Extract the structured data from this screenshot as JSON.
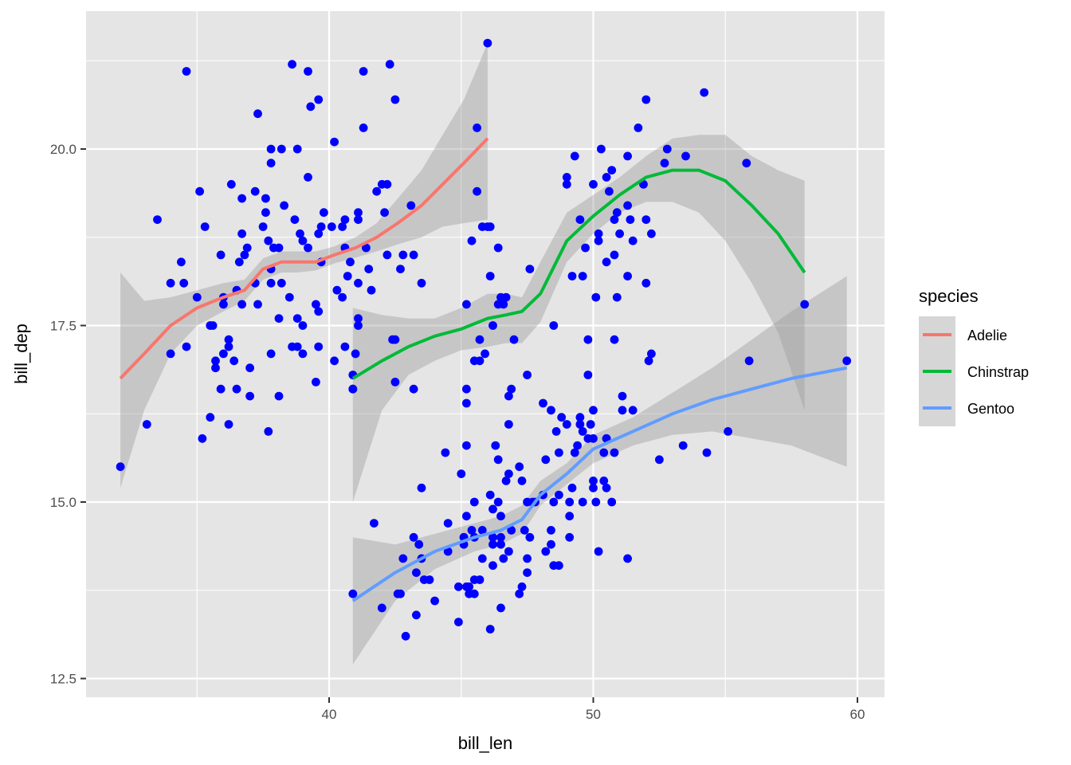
{
  "chart_data": {
    "type": "scatter",
    "title": "",
    "xlabel": "bill_len",
    "ylabel": "bill_dep",
    "xlim": [
      31.2,
      60.9
    ],
    "ylim": [
      12.0,
      22.0
    ],
    "x_ticks": [
      40,
      50,
      60
    ],
    "x_tick_labels": [
      "40",
      "50",
      "60"
    ],
    "y_ticks": [
      12.5,
      15.0,
      17.5,
      20.0
    ],
    "y_tick_labels": [
      "12.5",
      "15.0",
      "17.5",
      "20.0"
    ],
    "grid": true,
    "panel_background": "#e5e5e5",
    "point_color": "#0000ff",
    "ribbon_color": "#999999",
    "legend": {
      "title": "species",
      "placement": "right",
      "entries": [
        {
          "label": "Adelie",
          "color": "#f8766d"
        },
        {
          "label": "Chinstrap",
          "color": "#00ba38"
        },
        {
          "label": "Gentoo",
          "color": "#619cff"
        }
      ]
    },
    "points": [
      [
        32.1,
        15.5
      ],
      [
        33.1,
        16.1
      ],
      [
        33.5,
        19.0
      ],
      [
        34.0,
        17.1
      ],
      [
        34.0,
        18.1
      ],
      [
        34.4,
        18.4
      ],
      [
        34.5,
        18.1
      ],
      [
        34.6,
        21.1
      ],
      [
        34.6,
        17.2
      ],
      [
        35.0,
        17.9
      ],
      [
        35.1,
        19.4
      ],
      [
        35.2,
        15.9
      ],
      [
        35.3,
        18.9
      ],
      [
        35.5,
        16.2
      ],
      [
        35.5,
        17.5
      ],
      [
        35.6,
        17.5
      ],
      [
        35.7,
        17.0
      ],
      [
        35.7,
        16.9
      ],
      [
        35.9,
        16.6
      ],
      [
        35.9,
        18.5
      ],
      [
        36.0,
        17.9
      ],
      [
        36.0,
        17.1
      ],
      [
        36.0,
        17.8
      ],
      [
        36.2,
        16.1
      ],
      [
        36.2,
        17.2
      ],
      [
        36.2,
        17.3
      ],
      [
        36.3,
        19.5
      ],
      [
        36.4,
        17.0
      ],
      [
        36.5,
        16.6
      ],
      [
        36.5,
        18.0
      ],
      [
        36.6,
        18.4
      ],
      [
        36.7,
        17.8
      ],
      [
        36.7,
        19.3
      ],
      [
        36.7,
        18.8
      ],
      [
        36.8,
        18.5
      ],
      [
        36.9,
        18.6
      ],
      [
        37.0,
        16.5
      ],
      [
        37.0,
        16.9
      ],
      [
        37.2,
        19.4
      ],
      [
        37.2,
        18.1
      ],
      [
        37.3,
        17.8
      ],
      [
        37.3,
        20.5
      ],
      [
        37.5,
        18.9
      ],
      [
        37.6,
        19.3
      ],
      [
        37.6,
        19.1
      ],
      [
        37.7,
        18.7
      ],
      [
        37.7,
        16.0
      ],
      [
        37.8,
        20.0
      ],
      [
        37.8,
        18.3
      ],
      [
        37.8,
        17.1
      ],
      [
        37.8,
        19.8
      ],
      [
        37.8,
        18.1
      ],
      [
        37.9,
        18.6
      ],
      [
        38.1,
        18.6
      ],
      [
        38.1,
        16.5
      ],
      [
        38.1,
        17.6
      ],
      [
        38.2,
        18.1
      ],
      [
        38.2,
        20.0
      ],
      [
        38.3,
        19.2
      ],
      [
        38.5,
        17.9
      ],
      [
        38.6,
        21.2
      ],
      [
        38.6,
        17.2
      ],
      [
        38.7,
        19.0
      ],
      [
        38.8,
        17.2
      ],
      [
        38.8,
        20.0
      ],
      [
        38.8,
        17.6
      ],
      [
        38.9,
        18.8
      ],
      [
        39.0,
        17.5
      ],
      [
        39.0,
        18.7
      ],
      [
        39.0,
        17.1
      ],
      [
        39.2,
        18.6
      ],
      [
        39.2,
        21.1
      ],
      [
        39.2,
        19.6
      ],
      [
        39.3,
        20.6
      ],
      [
        39.5,
        17.8
      ],
      [
        39.5,
        16.7
      ],
      [
        39.6,
        18.8
      ],
      [
        39.6,
        17.7
      ],
      [
        39.6,
        20.7
      ],
      [
        39.6,
        17.2
      ],
      [
        39.7,
        18.4
      ],
      [
        39.7,
        18.9
      ],
      [
        39.8,
        19.1
      ],
      [
        40.1,
        18.9
      ],
      [
        40.2,
        17.0
      ],
      [
        40.2,
        20.1
      ],
      [
        40.3,
        18.0
      ],
      [
        40.5,
        17.9
      ],
      [
        40.5,
        18.9
      ],
      [
        40.6,
        18.6
      ],
      [
        40.6,
        17.2
      ],
      [
        40.6,
        19.0
      ],
      [
        40.7,
        18.2
      ],
      [
        40.8,
        18.4
      ],
      [
        40.9,
        16.6
      ],
      [
        40.9,
        16.8
      ],
      [
        41.0,
        17.1
      ],
      [
        41.1,
        19.0
      ],
      [
        41.1,
        18.1
      ],
      [
        41.1,
        19.1
      ],
      [
        41.1,
        17.5
      ],
      [
        41.1,
        17.6
      ],
      [
        41.3,
        21.1
      ],
      [
        41.3,
        20.3
      ],
      [
        41.4,
        18.6
      ],
      [
        41.5,
        18.3
      ],
      [
        41.6,
        18.0
      ],
      [
        41.8,
        19.4
      ],
      [
        42.0,
        19.5
      ],
      [
        42.1,
        19.1
      ],
      [
        42.2,
        18.5
      ],
      [
        42.2,
        19.5
      ],
      [
        42.3,
        21.2
      ],
      [
        42.5,
        20.7
      ],
      [
        42.7,
        18.3
      ],
      [
        42.8,
        18.5
      ],
      [
        43.1,
        19.2
      ],
      [
        43.2,
        18.5
      ],
      [
        45.6,
        20.3
      ],
      [
        45.8,
        18.9
      ],
      [
        46.0,
        21.5
      ],
      [
        46.1,
        18.9
      ],
      [
        46.5,
        17.9
      ],
      [
        50.0,
        19.5
      ],
      [
        51.3,
        19.2
      ],
      [
        45.4,
        18.7
      ],
      [
        52.7,
        19.8
      ],
      [
        45.2,
        17.8
      ],
      [
        46.1,
        18.2
      ],
      [
        51.3,
        18.2
      ],
      [
        46.0,
        18.9
      ],
      [
        51.3,
        19.9
      ],
      [
        46.6,
        17.8
      ],
      [
        51.7,
        20.3
      ],
      [
        47.0,
        17.3
      ],
      [
        52.0,
        18.1
      ],
      [
        45.9,
        17.1
      ],
      [
        50.5,
        19.6
      ],
      [
        50.3,
        20.0
      ],
      [
        58.0,
        17.8
      ],
      [
        46.4,
        18.6
      ],
      [
        49.2,
        18.2
      ],
      [
        42.4,
        17.3
      ],
      [
        48.5,
        17.5
      ],
      [
        43.2,
        16.6
      ],
      [
        50.6,
        19.4
      ],
      [
        46.7,
        17.9
      ],
      [
        52.0,
        19.0
      ],
      [
        50.5,
        18.4
      ],
      [
        49.5,
        19.0
      ],
      [
        46.4,
        17.8
      ],
      [
        52.8,
        20.0
      ],
      [
        40.9,
        16.6
      ],
      [
        54.2,
        20.8
      ],
      [
        42.5,
        16.7
      ],
      [
        51.0,
        18.8
      ],
      [
        49.7,
        18.6
      ],
      [
        47.5,
        16.8
      ],
      [
        47.6,
        18.3
      ],
      [
        52.0,
        20.7
      ],
      [
        46.9,
        16.6
      ],
      [
        53.5,
        19.9
      ],
      [
        49.0,
        19.5
      ],
      [
        46.2,
        17.5
      ],
      [
        50.9,
        19.1
      ],
      [
        45.5,
        17.0
      ],
      [
        50.9,
        17.9
      ],
      [
        50.8,
        18.5
      ],
      [
        50.1,
        17.9
      ],
      [
        49.0,
        19.6
      ],
      [
        51.5,
        18.7
      ],
      [
        49.8,
        17.3
      ],
      [
        48.1,
        16.4
      ],
      [
        51.4,
        19.0
      ],
      [
        45.7,
        17.3
      ],
      [
        50.7,
        19.7
      ],
      [
        42.5,
        17.3
      ],
      [
        52.2,
        18.8
      ],
      [
        45.2,
        16.6
      ],
      [
        49.3,
        19.9
      ],
      [
        50.2,
        18.8
      ],
      [
        45.6,
        19.4
      ],
      [
        51.9,
        19.5
      ],
      [
        46.8,
        16.5
      ],
      [
        45.7,
        17.0
      ],
      [
        55.8,
        19.8
      ],
      [
        43.5,
        18.1
      ],
      [
        49.6,
        18.2
      ],
      [
        50.8,
        19.0
      ],
      [
        50.2,
        18.7
      ],
      [
        46.1,
        13.2
      ],
      [
        50.0,
        16.3
      ],
      [
        48.7,
        14.1
      ],
      [
        50.0,
        15.2
      ],
      [
        47.6,
        14.5
      ],
      [
        46.5,
        13.5
      ],
      [
        45.4,
        14.6
      ],
      [
        46.7,
        15.3
      ],
      [
        43.3,
        13.4
      ],
      [
        46.8,
        15.4
      ],
      [
        40.9,
        13.7
      ],
      [
        49.0,
        16.1
      ],
      [
        45.5,
        13.7
      ],
      [
        48.4,
        14.6
      ],
      [
        45.8,
        14.6
      ],
      [
        49.3,
        15.7
      ],
      [
        42.0,
        13.5
      ],
      [
        49.2,
        15.2
      ],
      [
        46.2,
        14.5
      ],
      [
        48.7,
        15.1
      ],
      [
        50.2,
        14.3
      ],
      [
        45.1,
        14.5
      ],
      [
        46.5,
        14.5
      ],
      [
        46.3,
        15.8
      ],
      [
        42.9,
        13.1
      ],
      [
        46.1,
        15.1
      ],
      [
        44.5,
        14.3
      ],
      [
        47.8,
        15.0
      ],
      [
        48.2,
        14.3
      ],
      [
        50.0,
        15.3
      ],
      [
        47.3,
        15.3
      ],
      [
        42.8,
        14.2
      ],
      [
        45.1,
        14.5
      ],
      [
        59.6,
        17.0
      ],
      [
        49.1,
        14.8
      ],
      [
        48.4,
        16.3
      ],
      [
        42.6,
        13.7
      ],
      [
        44.4,
        15.7
      ],
      [
        44.0,
        13.6
      ],
      [
        48.7,
        15.7
      ],
      [
        42.7,
        13.7
      ],
      [
        49.6,
        16.0
      ],
      [
        45.3,
        13.7
      ],
      [
        49.6,
        15.0
      ],
      [
        50.5,
        15.9
      ],
      [
        43.6,
        13.9
      ],
      [
        45.5,
        13.9
      ],
      [
        50.5,
        15.9
      ],
      [
        44.9,
        13.3
      ],
      [
        45.2,
        15.8
      ],
      [
        46.6,
        14.2
      ],
      [
        48.5,
        14.1
      ],
      [
        45.1,
        14.4
      ],
      [
        50.1,
        15.0
      ],
      [
        46.5,
        14.4
      ],
      [
        45.0,
        15.4
      ],
      [
        43.8,
        13.9
      ],
      [
        45.5,
        15.0
      ],
      [
        43.2,
        14.5
      ],
      [
        50.4,
        15.3
      ],
      [
        45.3,
        13.8
      ],
      [
        46.2,
        14.9
      ],
      [
        45.7,
        13.9
      ],
      [
        54.3,
        15.7
      ],
      [
        45.8,
        14.2
      ],
      [
        49.8,
        16.8
      ],
      [
        46.2,
        14.4
      ],
      [
        49.5,
        16.2
      ],
      [
        43.5,
        14.2
      ],
      [
        50.7,
        15.0
      ],
      [
        47.7,
        15.0
      ],
      [
        46.4,
        15.6
      ],
      [
        48.2,
        15.6
      ],
      [
        46.5,
        14.8
      ],
      [
        46.4,
        15.0
      ],
      [
        48.6,
        16.0
      ],
      [
        47.5,
        14.2
      ],
      [
        51.1,
        16.3
      ],
      [
        45.2,
        13.8
      ],
      [
        45.2,
        16.4
      ],
      [
        49.1,
        14.5
      ],
      [
        52.5,
        15.6
      ],
      [
        47.4,
        14.6
      ],
      [
        50.0,
        15.9
      ],
      [
        44.9,
        13.8
      ],
      [
        50.8,
        17.3
      ],
      [
        43.4,
        14.4
      ],
      [
        51.3,
        14.2
      ],
      [
        47.5,
        14.0
      ],
      [
        52.1,
        17.0
      ],
      [
        47.5,
        15.0
      ],
      [
        52.2,
        17.1
      ],
      [
        45.5,
        14.5
      ],
      [
        49.5,
        16.1
      ],
      [
        44.5,
        14.7
      ],
      [
        50.8,
        15.7
      ],
      [
        49.4,
        15.8
      ],
      [
        46.9,
        14.6
      ],
      [
        48.4,
        14.4
      ],
      [
        51.1,
        16.5
      ],
      [
        48.5,
        15.0
      ],
      [
        55.9,
        17.0
      ],
      [
        47.2,
        15.5
      ],
      [
        49.1,
        15.0
      ],
      [
        47.3,
        13.8
      ],
      [
        46.8,
        16.1
      ],
      [
        41.7,
        14.7
      ],
      [
        53.4,
        15.8
      ],
      [
        43.3,
        14.0
      ],
      [
        48.1,
        15.1
      ],
      [
        50.5,
        15.2
      ],
      [
        49.8,
        15.9
      ],
      [
        43.5,
        15.2
      ],
      [
        51.5,
        16.3
      ],
      [
        46.2,
        14.1
      ],
      [
        55.1,
        16.0
      ],
      [
        48.8,
        16.2
      ],
      [
        47.2,
        13.7
      ],
      [
        46.8,
        14.3
      ],
      [
        50.4,
        15.7
      ],
      [
        45.2,
        14.8
      ],
      [
        49.9,
        16.1
      ]
    ],
    "series": [
      {
        "name": "Adelie",
        "color": "#f8766d",
        "x": [
          32.1,
          33.0,
          34.0,
          35.0,
          36.0,
          36.8,
          37.5,
          38.2,
          38.8,
          39.5,
          40.2,
          41.0,
          41.8,
          42.6,
          43.5,
          44.3,
          45.1,
          46.0
        ],
        "y": [
          16.75,
          17.1,
          17.5,
          17.75,
          17.9,
          18.0,
          18.3,
          18.4,
          18.4,
          18.4,
          18.5,
          18.6,
          18.75,
          18.95,
          19.2,
          19.5,
          19.8,
          20.15
        ],
        "ymin": [
          15.2,
          16.3,
          17.1,
          17.5,
          17.7,
          17.85,
          18.15,
          18.25,
          18.25,
          18.28,
          18.38,
          18.46,
          18.55,
          18.65,
          18.75,
          18.9,
          18.95,
          19.0
        ],
        "ymax": [
          18.25,
          17.85,
          17.9,
          18.0,
          18.1,
          18.15,
          18.45,
          18.55,
          18.55,
          18.55,
          18.62,
          18.75,
          18.95,
          19.3,
          19.7,
          20.2,
          20.7,
          21.5
        ]
      },
      {
        "name": "Chinstrap",
        "color": "#00ba38",
        "x": [
          40.9,
          42.0,
          43.0,
          44.0,
          45.0,
          46.0,
          46.7,
          47.3,
          48.0,
          49.0,
          50.0,
          51.0,
          52.0,
          53.0,
          54.0,
          55.0,
          56.0,
          57.0,
          58.0
        ],
        "y": [
          16.75,
          17.0,
          17.2,
          17.35,
          17.45,
          17.6,
          17.65,
          17.7,
          17.95,
          18.7,
          19.05,
          19.35,
          19.6,
          19.7,
          19.7,
          19.55,
          19.2,
          18.8,
          18.25
        ],
        "ymin": [
          15.0,
          16.3,
          16.8,
          17.0,
          17.15,
          17.2,
          17.25,
          17.25,
          17.55,
          18.4,
          18.8,
          19.1,
          19.25,
          19.25,
          19.1,
          18.7,
          18.1,
          17.4,
          16.3
        ],
        "ymax": [
          17.75,
          17.65,
          17.6,
          17.6,
          17.75,
          17.95,
          17.95,
          17.9,
          18.4,
          19.1,
          19.35,
          19.6,
          19.9,
          20.15,
          20.2,
          20.2,
          19.9,
          19.7,
          19.55
        ]
      },
      {
        "name": "Gentoo",
        "color": "#619cff",
        "x": [
          40.9,
          42.5,
          44.0,
          45.5,
          46.5,
          47.3,
          48.0,
          49.0,
          50.0,
          51.5,
          53.0,
          54.5,
          56.0,
          57.5,
          59.6
        ],
        "y": [
          13.6,
          14.0,
          14.3,
          14.5,
          14.6,
          14.75,
          15.1,
          15.4,
          15.75,
          16.0,
          16.25,
          16.45,
          16.6,
          16.75,
          16.9
        ],
        "ymin": [
          12.7,
          13.6,
          14.05,
          14.3,
          14.4,
          14.55,
          14.95,
          15.25,
          15.55,
          15.8,
          15.95,
          16.0,
          15.9,
          15.8,
          15.5
        ],
        "ymax": [
          14.5,
          14.4,
          14.55,
          14.7,
          14.8,
          14.95,
          15.3,
          15.55,
          15.95,
          16.2,
          16.55,
          16.9,
          17.3,
          17.7,
          18.2
        ]
      }
    ]
  }
}
